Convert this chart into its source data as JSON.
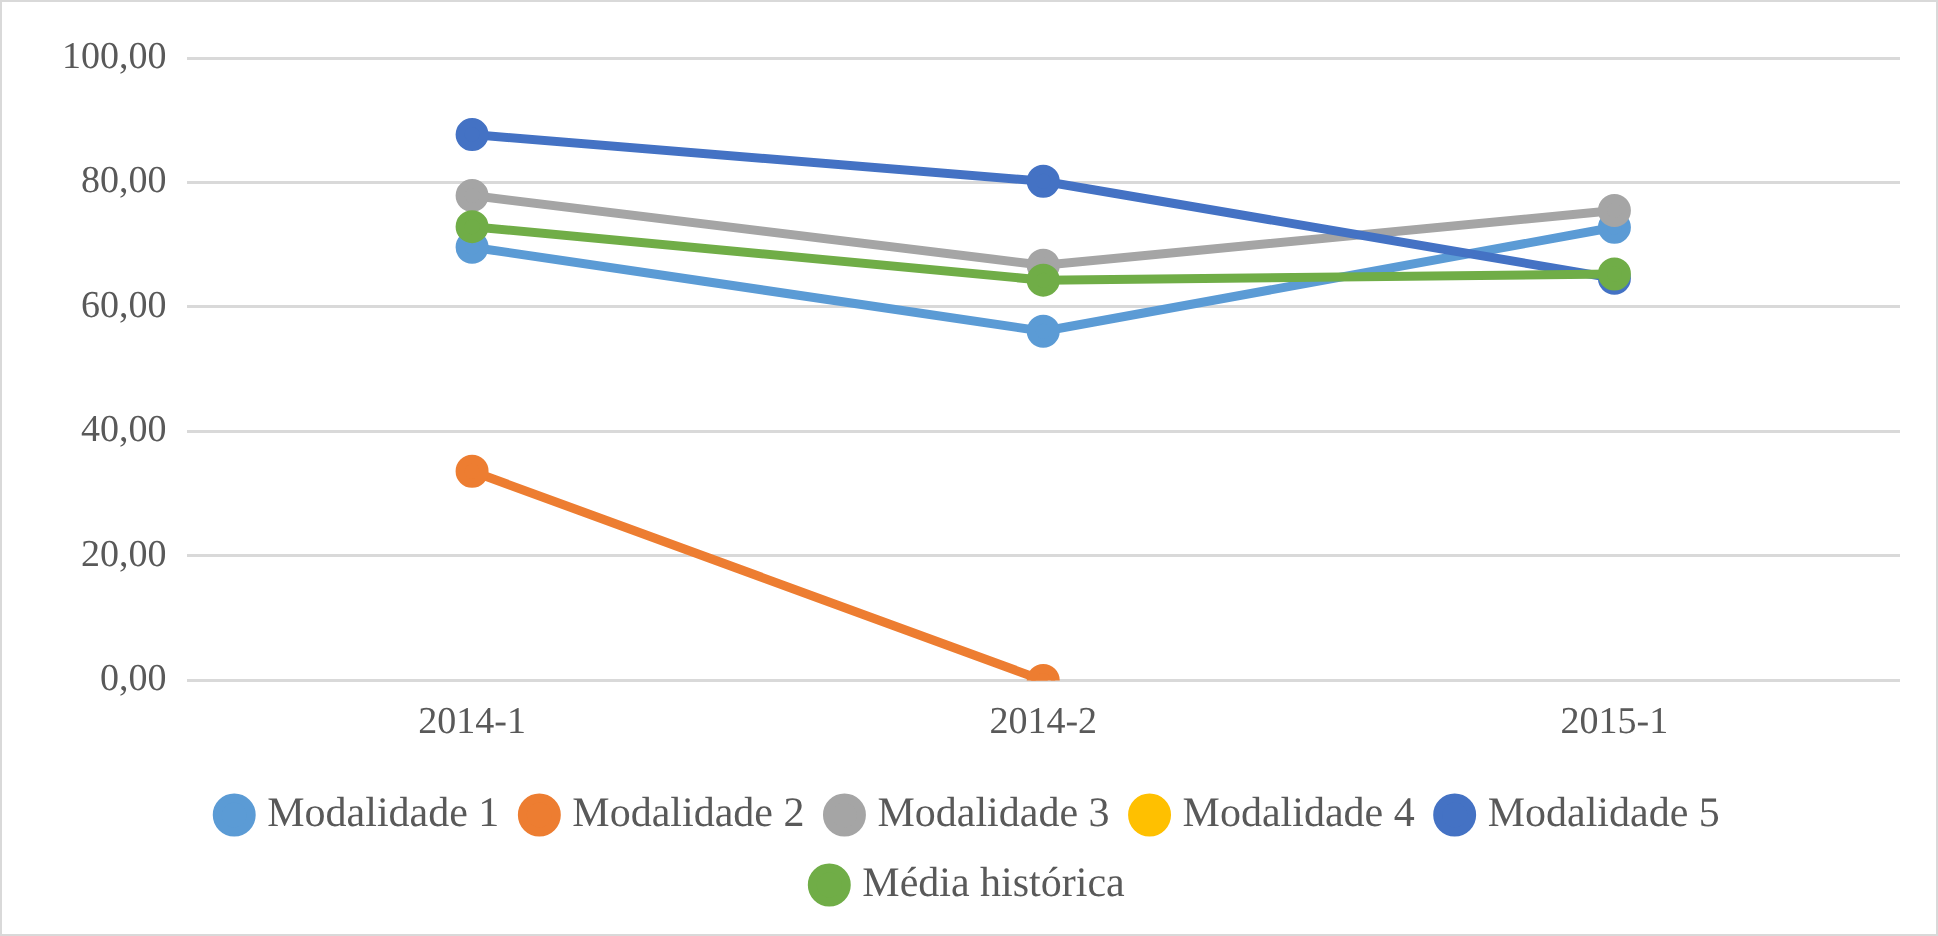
{
  "chart_data": {
    "type": "line",
    "categories": [
      "2014-1",
      "2014-2",
      "2015-1"
    ],
    "series": [
      {
        "name": "Modalidade 1",
        "color": "#5b9bd5",
        "values": [
          69.6,
          56.1,
          72.8
        ]
      },
      {
        "name": "Modalidade 2",
        "color": "#ed7d31",
        "values": [
          33.6,
          0,
          null
        ]
      },
      {
        "name": "Modalidade 3",
        "color": "#a5a5a5",
        "values": [
          77.9,
          66.7,
          75.5
        ]
      },
      {
        "name": "Modalidade 4",
        "color": "#ffc000",
        "values": [
          null,
          null,
          null
        ]
      },
      {
        "name": "Modalidade 5",
        "color": "#4472c4",
        "values": [
          87.7,
          80.2,
          64.6
        ]
      },
      {
        "name": "Média histórica",
        "color": "#70ad47",
        "values": [
          72.9,
          64.3,
          65.3
        ]
      }
    ],
    "ylim": [
      0,
      100
    ],
    "yticks": [
      {
        "value": 0,
        "label": "0,00"
      },
      {
        "value": 20,
        "label": "20,00"
      },
      {
        "value": 40,
        "label": "40,00"
      },
      {
        "value": 60,
        "label": "60,00"
      },
      {
        "value": 80,
        "label": "80,00"
      },
      {
        "value": 100,
        "label": "100,00"
      }
    ],
    "grid": "y",
    "legend": "bottom",
    "marker": "circle",
    "line_style": "solid"
  }
}
